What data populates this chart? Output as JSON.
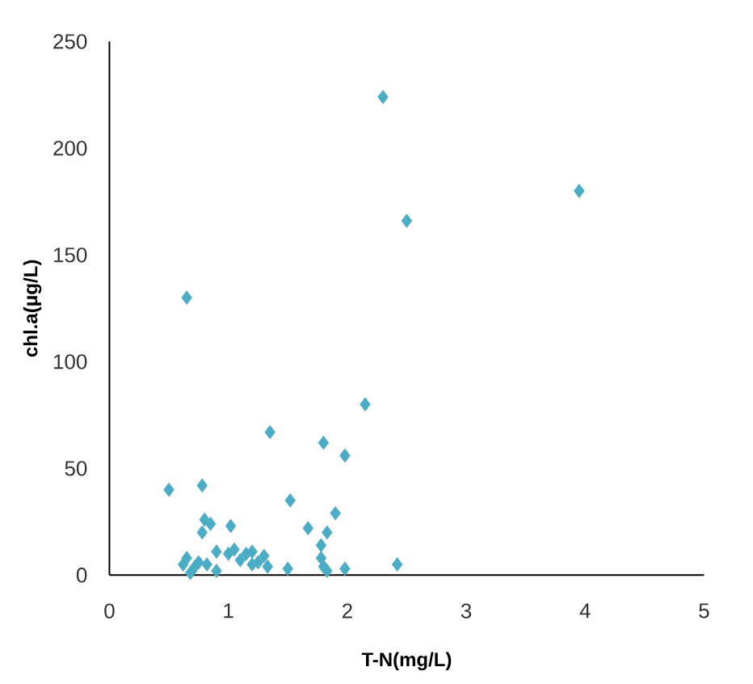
{
  "chart_data": {
    "type": "scatter",
    "xlabel": "T-N(mg/L)",
    "ylabel": "chl.a(μg/L)",
    "marker": "diamond",
    "grid": false,
    "xlim": [
      0,
      5
    ],
    "xticks": [
      0,
      1,
      2,
      3,
      4,
      5
    ],
    "ylim": [
      0,
      250
    ],
    "yticks": [
      0,
      50,
      100,
      150,
      200,
      250
    ],
    "series": [
      {
        "color": "#4bacc6",
        "x": [
          0.5,
          0.65,
          0.78,
          2.3,
          3.95,
          2.5,
          2.15,
          1.35,
          1.8,
          1.98,
          1.52,
          1.9,
          0.8,
          0.85,
          0.78,
          1.02,
          1.67,
          1.83,
          0.9,
          1.78,
          1.05,
          1.15,
          1.2,
          1.3,
          1.1,
          1.25,
          1.33,
          1.5,
          1.78,
          1.8,
          1.83,
          1.98,
          2.42,
          0.62,
          0.65,
          0.68,
          0.75,
          0.72,
          0.9,
          0.82,
          1.2,
          1.0
        ],
        "values": [
          40,
          130,
          42,
          224,
          180,
          166,
          80,
          67,
          62,
          56,
          35,
          29,
          26,
          24,
          20,
          23,
          22,
          20,
          11,
          14,
          12,
          10,
          11,
          9,
          7,
          6,
          4,
          3,
          8,
          4,
          2,
          3,
          5,
          5,
          8,
          1,
          6,
          4,
          2,
          5,
          5,
          10
        ]
      }
    ]
  }
}
